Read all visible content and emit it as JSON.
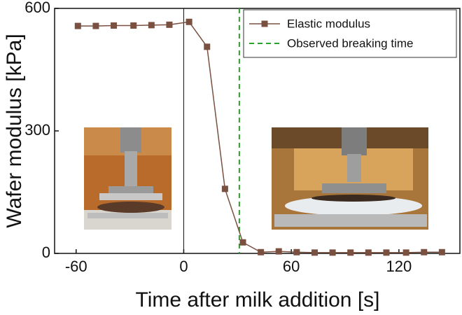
{
  "chart_data": {
    "type": "line",
    "x_label": "Time after milk addition [s]",
    "y_label": "Wafer modulus [kPa]",
    "x": [
      -59,
      -49,
      -39,
      -28,
      -18,
      -8,
      3,
      13,
      23,
      33,
      43,
      53,
      63,
      73,
      83,
      93,
      103,
      113,
      124,
      134,
      144
    ],
    "series": [
      {
        "name": "Elastic modulus",
        "color": "#7a5040",
        "values": [
          557,
          557,
          558,
          558,
          559,
          560,
          567,
          506,
          158,
          27,
          3,
          5,
          3,
          2,
          2,
          2,
          2,
          2,
          2,
          3,
          3
        ]
      }
    ],
    "breaking_time": {
      "name": "Observed breaking time",
      "color": "#2ca02c",
      "value": 31
    },
    "xlim": [
      -72,
      154
    ],
    "xticks": [
      -60,
      0,
      60,
      120
    ],
    "ylim": [
      0,
      600
    ],
    "yticks": [
      0,
      300,
      600
    ]
  }
}
